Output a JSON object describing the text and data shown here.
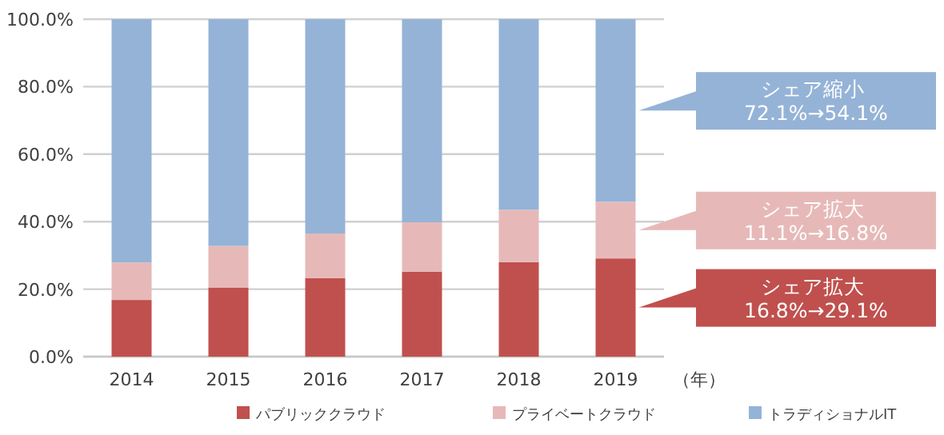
{
  "chart_data": {
    "type": "bar",
    "stacked": true,
    "xlabel": "（年）",
    "categories": [
      "2014",
      "2015",
      "2016",
      "2017",
      "2018",
      "2019"
    ],
    "series": [
      {
        "name": "パブリッククラウド",
        "color": "#c0504d",
        "values": [
          16.8,
          20.5,
          23.3,
          25.2,
          28.0,
          29.1
        ]
      },
      {
        "name": "プライベートクラウド",
        "color": "#e6b9b8",
        "values": [
          11.1,
          12.3,
          13.2,
          14.6,
          15.5,
          16.8
        ]
      },
      {
        "name": "トラディショナルIT",
        "color": "#95b3d7",
        "values": [
          72.1,
          67.2,
          63.5,
          60.2,
          56.5,
          54.1
        ]
      }
    ],
    "ylim": [
      0,
      100
    ],
    "yticks": [
      {
        "value": 0,
        "label": "0.0%"
      },
      {
        "value": 20,
        "label": "20.0%"
      },
      {
        "value": 40,
        "label": "40.0%"
      },
      {
        "value": 60,
        "label": "60.0%"
      },
      {
        "value": 80,
        "label": "80.0%"
      },
      {
        "value": 100,
        "label": "100.0%"
      }
    ],
    "grid": "y",
    "legend": "bottom",
    "annotations": [
      "シェア縮小 72.1%→54.1%",
      "シェア拡大 11.1%→16.8%",
      "シェア拡大 16.8%→29.1%"
    ]
  }
}
